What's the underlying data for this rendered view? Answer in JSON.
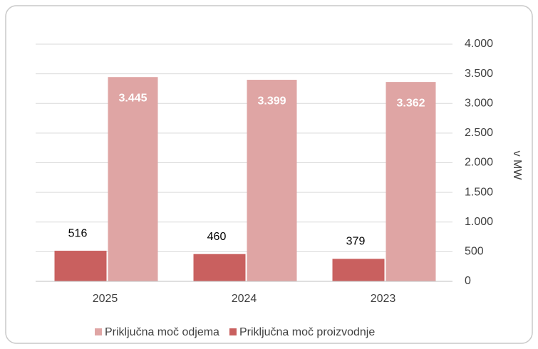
{
  "chart_data": {
    "type": "bar",
    "categories": [
      "2025",
      "2024",
      "2023"
    ],
    "series": [
      {
        "name": "Priključna moč proizvodnje",
        "color": "#c9605f",
        "values": [
          516,
          460,
          379
        ]
      },
      {
        "name": "Priključna moč odjema",
        "color": "#dfa5a4",
        "values": [
          3445,
          3399,
          3362
        ],
        "value_labels": [
          "3.445",
          "3.399",
          "3.362"
        ]
      }
    ],
    "y_label": "v MW",
    "ylim": [
      0,
      4000
    ],
    "yticks": [
      0,
      500,
      {
        "value": 1000,
        "label": "1.000"
      },
      {
        "value": 1500,
        "label": "1.500"
      },
      {
        "value": 2000,
        "label": "2.000"
      },
      {
        "value": 2500,
        "label": "2.500"
      },
      {
        "value": 3000,
        "label": "3.000"
      },
      {
        "value": 3500,
        "label": "3.500"
      },
      {
        "value": 4000,
        "label": "4.000"
      }
    ],
    "grid": true
  }
}
